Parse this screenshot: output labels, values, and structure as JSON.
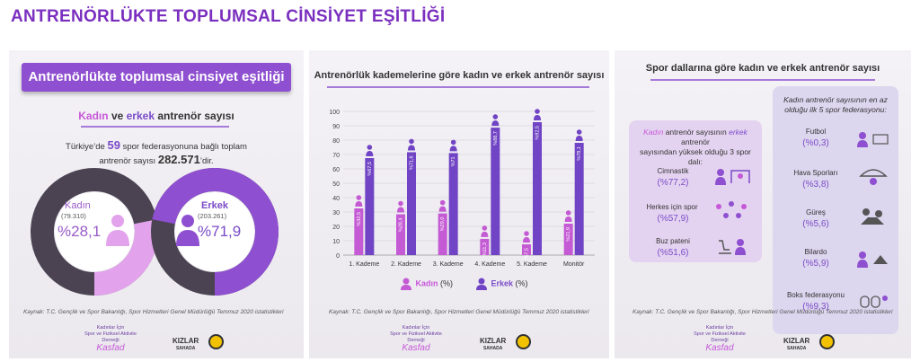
{
  "page_title": "ANTRENÖRLÜKTE TOPLUMSAL CİNSİYET EŞİTLİĞİ",
  "panel1": {
    "ribbon": "Antrenörlükte toplumsal cinsiyet eşitliği",
    "subtitle_kadin": "Kadın",
    "subtitle_ve": " ve ",
    "subtitle_erkek": "erkek",
    "subtitle_rest": " antrenör sayısı",
    "intro_pre": "Türkiye’de ",
    "intro_num": "59",
    "intro_mid": " spor federasyonuna bağlı toplam",
    "intro_line2_pre": "antrenör sayısı ",
    "intro_total": "282.571",
    "intro_line2_post": "’dir.",
    "donut_women": {
      "label": "Kadın",
      "count": "(79.310)",
      "pct": "%28,1",
      "value": 28.1,
      "color": "#e2a3ec"
    },
    "donut_men": {
      "label": "Erkek",
      "count": "(203.261)",
      "pct": "%71,9",
      "value": 71.9,
      "color": "#8e4fd0"
    },
    "source": "Kaynak: T.C. Gençlik ve Spor Bakanlığı, Spor Hizmetleri Genel Müdürlüğü Temmuz 2020 istatistikleri"
  },
  "logos": {
    "assoc_line1": "Kadınlar İçin",
    "assoc_line2": "Spor ve Fiziksel Aktivite",
    "assoc_line3": "Derneği",
    "assoc_script": "Kasfad",
    "kizlar1": "KIZLAR",
    "kizlar2": "SAHADA"
  },
  "panel2": {
    "title": "Antrenörlük kademelerine göre kadın ve erkek antrenör sayısı",
    "legend_women": "Kadın",
    "legend_men": "Erkek",
    "legend_unit": " (%)",
    "source": "Kaynak: T.C. Gençlik ve Spor Bakanlığı, Spor Hizmetleri Genel Müdürlüğü Temmuz 2020 istatistikleri"
  },
  "chart_data": {
    "type": "bar",
    "title": "Antrenörlük kademelerine göre kadın ve erkek antrenör sayısı",
    "categories": [
      "1. Kademe",
      "2. Kademe",
      "3. Kademe",
      "4. Kademe",
      "5. Kademe",
      "Monitör"
    ],
    "yticks": [
      "0",
      "10",
      "20",
      "30",
      "40",
      "50",
      "60",
      "70",
      "80",
      "90",
      "100"
    ],
    "ylim": [
      0,
      100
    ],
    "series": [
      {
        "name": "Kadın",
        "values": [
          32.5,
          28.4,
          29.0,
          11.3,
          7.5,
          21.9
        ],
        "labels": [
          "%32,5",
          "%28,4",
          "%29,0",
          "%11,3",
          "%7,5",
          "%21,9"
        ],
        "color": "#c45ad4"
      },
      {
        "name": "Erkek",
        "values": [
          67.5,
          71.6,
          71.0,
          88.7,
          92.5,
          78.1
        ],
        "labels": [
          "%67,5",
          "%71,6",
          "%71",
          "%88,7",
          "%92,5",
          "%78,1"
        ],
        "color": "#7044c4"
      }
    ],
    "legend": "bottom"
  },
  "panel3": {
    "title": "Spor dallarına göre kadın ve erkek antrenör sayısı",
    "box1_k": "Kadın",
    "box1_l1_mid": " antrenör sayısının ",
    "box1_e": "erkek",
    "box1_l1_post": " antrenör",
    "box1_l2": "sayısından yüksek olduğu 3 spor dalı:",
    "box1_items": [
      {
        "name": "Cimnastik",
        "val": "(%77,2)"
      },
      {
        "name": "Herkes için spor",
        "val": "(%57,9)"
      },
      {
        "name": "Buz pateni",
        "val": "(%51,6)"
      }
    ],
    "box2_l1": "Kadın antrenör sayısının en az",
    "box2_l2": "olduğu ilk 5 spor federasyonu:",
    "box2_items": [
      {
        "name": "Futbol",
        "val": "(%0,3)"
      },
      {
        "name": "Hava Sporları",
        "val": "(%3,8)"
      },
      {
        "name": "Güreş",
        "val": "(%5,6)"
      },
      {
        "name": "Bilardo",
        "val": "(%5,9)"
      },
      {
        "name": "Boks federasyonu",
        "val": "(%9,3)"
      }
    ],
    "source": "Kaynak: T.C. Gençlik ve Spor Bakanlığı, Spor Hizmetleri Genel Müdürlüğü Temmuz 2020 istatistikleri"
  }
}
